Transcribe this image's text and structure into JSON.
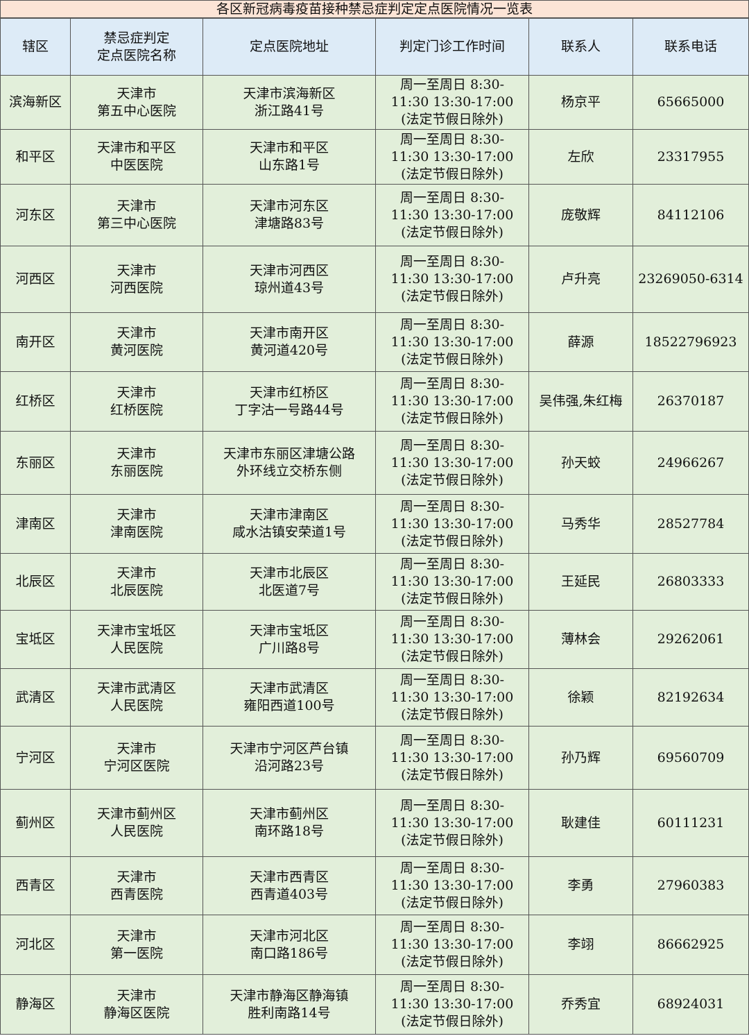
{
  "title": "各区新冠病毒疫苗接种禁忌症判定定点医院情况一览表",
  "colors": {
    "title_bg": "#fce4d6",
    "header_bg": "#ddebf7",
    "body_bg": "#e2efda"
  },
  "headers": [
    "辖区",
    "禁忌症判定\n定点医院名称",
    "定点医院地址",
    "判定门诊工作时间",
    "联系人",
    "联系电话"
  ],
  "rows": [
    {
      "district": "滨海新区",
      "hospital": "天津市\n第五中心医院",
      "address": "天津市滨海新区\n浙江路41号",
      "hours": "周一至周日 8:30-\n11:30 13:30-17:00\n(法定节假日除外)",
      "contact": "杨京平",
      "phone": "65665000"
    },
    {
      "district": "和平区",
      "hospital": "天津市和平区\n中医医院",
      "address": "天津市和平区\n山东路1号",
      "hours": "周一至周日 8:30-\n11:30 13:30-17:00\n(法定节假日除外)",
      "contact": "左欣",
      "phone": "23317955"
    },
    {
      "district": "河东区",
      "hospital": "天津市\n第三中心医院",
      "address": "天津市河东区\n津塘路83号",
      "hours": "周一至周日 8:30-\n11:30 13:30-17:00\n(法定节假日除外)",
      "contact": "庞敬辉",
      "phone": "84112106"
    },
    {
      "district": "河西区",
      "hospital": "天津市\n河西医院",
      "address": "天津市河西区\n琼州道43号",
      "hours": "周一至周日 8:30-\n11:30 13:30-17:00\n(法定节假日除外)",
      "contact": "卢升亮",
      "phone": "23269050-6314"
    },
    {
      "district": "南开区",
      "hospital": "天津市\n黄河医院",
      "address": "天津市南开区\n黄河道420号",
      "hours": "周一至周日 8:30-\n11:30 13:30-17:00\n(法定节假日除外)",
      "contact": "薛源",
      "phone": "18522796923"
    },
    {
      "district": "红桥区",
      "hospital": "天津市\n红桥医院",
      "address": "天津市红桥区\n丁字沽一号路44号",
      "hours": "周一至周日 8:30-\n11:30 13:30-17:00\n(法定节假日除外)",
      "contact": "吴伟强,朱红梅",
      "phone": "26370187"
    },
    {
      "district": "东丽区",
      "hospital": "天津市\n东丽医院",
      "address": "天津市东丽区津塘公路\n外环线立交桥东侧",
      "hours": "周一至周日 8:30-\n11:30 13:30-17:00\n(法定节假日除外)",
      "contact": "孙天蛟",
      "phone": "24966267"
    },
    {
      "district": "津南区",
      "hospital": "天津市\n津南医院",
      "address": "天津市津南区\n咸水沽镇安荣道1号",
      "hours": "周一至周日 8:30-\n11:30 13:30-17:00\n(法定节假日除外)",
      "contact": "马秀华",
      "phone": "28527784"
    },
    {
      "district": "北辰区",
      "hospital": "天津市\n北辰医院",
      "address": "天津市北辰区\n北医道7号",
      "hours": "周一至周日 8:30-\n11:30 13:30-17:00\n(法定节假日除外)",
      "contact": "王延民",
      "phone": "26803333"
    },
    {
      "district": "宝坻区",
      "hospital": "天津市宝坻区\n人民医院",
      "address": "天津市宝坻区\n广川路8号",
      "hours": "周一至周日 8:30-\n11:30 13:30-17:00\n(法定节假日除外)",
      "contact": "薄林会",
      "phone": "29262061"
    },
    {
      "district": "武清区",
      "hospital": "天津市武清区\n人民医院",
      "address": "天津市武清区\n雍阳西道100号",
      "hours": "周一至周日 8:30-\n11:30 13:30-17:00\n(法定节假日除外)",
      "contact": "徐颖",
      "phone": "82192634"
    },
    {
      "district": "宁河区",
      "hospital": "天津市\n宁河区医院",
      "address": "天津市宁河区芦台镇\n沿河路23号",
      "hours": "周一至周日 8:30-\n11:30 13:30-17:00\n(法定节假日除外)",
      "contact": "孙乃辉",
      "phone": "69560709"
    },
    {
      "district": "蓟州区",
      "hospital": "天津市蓟州区\n人民医院",
      "address": "天津市蓟州区\n南环路18号",
      "hours": "周一至周日 8:30-\n11:30 13:30-17:00\n(法定节假日除外)",
      "contact": "耿建佳",
      "phone": "60111231"
    },
    {
      "district": "西青区",
      "hospital": "天津市\n西青医院",
      "address": "天津市西青区\n西青道403号",
      "hours": "周一至周日 8:30-\n11:30 13:30-17:00\n(法定节假日除外)",
      "contact": "李勇",
      "phone": "27960383"
    },
    {
      "district": "河北区",
      "hospital": "天津市\n第一医院",
      "address": "天津市河北区\n南口路186号",
      "hours": "周一至周日 8:30-\n11:30 13:30-17:00\n(法定节假日除外)",
      "contact": "李翊",
      "phone": "86662925"
    },
    {
      "district": "静海区",
      "hospital": "天津市\n静海区医院",
      "address": "天津市静海区静海镇\n胜利南路14号",
      "hours": "周一至周日 8:30-\n11:30 13:30-17:00\n(法定节假日除外)",
      "contact": "乔秀宜",
      "phone": "68924031"
    }
  ]
}
